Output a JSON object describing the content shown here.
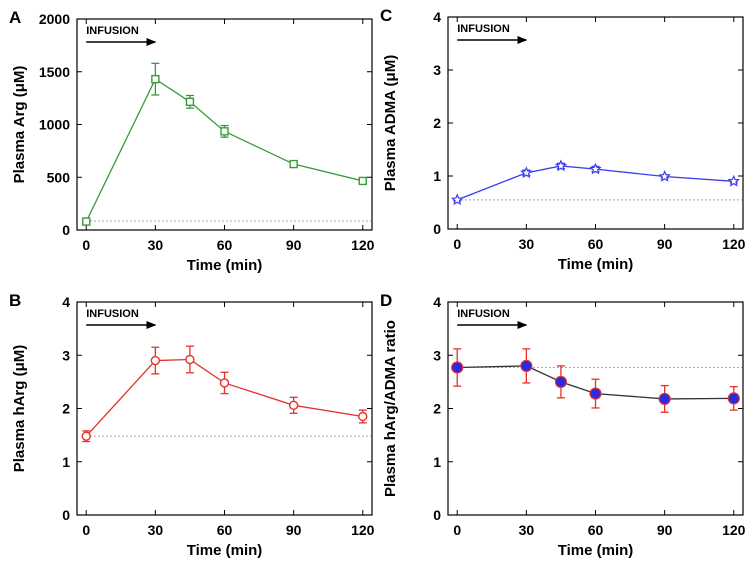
{
  "chart_data": [
    {
      "panel": "A",
      "type": "line",
      "title": "",
      "xlabel": "Time (min)",
      "ylabel": "Plasma Arg (μM)",
      "x": [
        0,
        30,
        45,
        60,
        90,
        120
      ],
      "y": [
        80,
        1430,
        1215,
        935,
        625,
        465
      ],
      "err": [
        20,
        150,
        60,
        55,
        30,
        20
      ],
      "baseline": 85,
      "xlim": [
        -4,
        124
      ],
      "ylim": [
        0,
        2000
      ],
      "xticks": [
        0,
        30,
        60,
        90,
        120
      ],
      "yticks": [
        0,
        500,
        1000,
        1500,
        2000
      ],
      "ytick_labels": [
        "0",
        "500",
        "1000",
        "1500",
        "2000"
      ],
      "color": "#3a9a3a",
      "marker": "square",
      "annotation": "INFUSION",
      "arrow_x": [
        0,
        30
      ]
    },
    {
      "panel": "C",
      "type": "line",
      "title": "",
      "xlabel": "Time (min)",
      "ylabel": "Plasma ADMA (μM)",
      "x": [
        0,
        30,
        45,
        60,
        90,
        120
      ],
      "y": [
        0.55,
        1.06,
        1.19,
        1.13,
        0.99,
        0.9
      ],
      "err": [
        0.02,
        0.05,
        0.05,
        0.05,
        0.03,
        0.03
      ],
      "baseline": 0.55,
      "xlim": [
        -4,
        124
      ],
      "ylim": [
        0,
        4
      ],
      "xticks": [
        0,
        30,
        60,
        90,
        120
      ],
      "yticks": [
        0,
        1,
        2,
        3,
        4
      ],
      "ytick_labels": [
        "0",
        "1",
        "2",
        "3",
        "4"
      ],
      "color": "#3b3bf0",
      "marker": "star",
      "annotation": "INFUSION",
      "arrow_x": [
        0,
        30
      ]
    },
    {
      "panel": "B",
      "type": "line",
      "title": "",
      "xlabel": "Time (min)",
      "ylabel": "Plasma hArg (μM)",
      "x": [
        0,
        30,
        45,
        60,
        90,
        120
      ],
      "y": [
        1.48,
        2.9,
        2.92,
        2.48,
        2.06,
        1.85
      ],
      "err": [
        0.1,
        0.25,
        0.25,
        0.2,
        0.15,
        0.12
      ],
      "baseline": 1.48,
      "xlim": [
        -4,
        124
      ],
      "ylim": [
        0,
        4
      ],
      "xticks": [
        0,
        30,
        60,
        90,
        120
      ],
      "yticks": [
        0,
        1,
        2,
        3,
        4
      ],
      "ytick_labels": [
        "0",
        "1",
        "2",
        "3",
        "4"
      ],
      "color": "#e8302a",
      "marker": "circle-open",
      "annotation": "INFUSION",
      "arrow_x": [
        0,
        30
      ]
    },
    {
      "panel": "D",
      "type": "line",
      "title": "",
      "xlabel": "Time (min)",
      "ylabel": "Plasma hArg/ADMA ratio",
      "x": [
        0,
        30,
        45,
        60,
        90,
        120
      ],
      "y": [
        2.77,
        2.8,
        2.5,
        2.28,
        2.18,
        2.19
      ],
      "err": [
        0.35,
        0.32,
        0.3,
        0.27,
        0.25,
        0.22
      ],
      "baseline": 2.77,
      "xlim": [
        -4,
        124
      ],
      "ylim": [
        0,
        4
      ],
      "xticks": [
        0,
        30,
        60,
        90,
        120
      ],
      "yticks": [
        0,
        1,
        2,
        3,
        4
      ],
      "ytick_labels": [
        "0",
        "1",
        "2",
        "3",
        "4"
      ],
      "color": "#333333",
      "marker_fill": "#2a2ae0",
      "errcolor": "#e8302a",
      "marker": "circle-filled",
      "annotation": "INFUSION",
      "arrow_x": [
        0,
        30
      ]
    }
  ]
}
